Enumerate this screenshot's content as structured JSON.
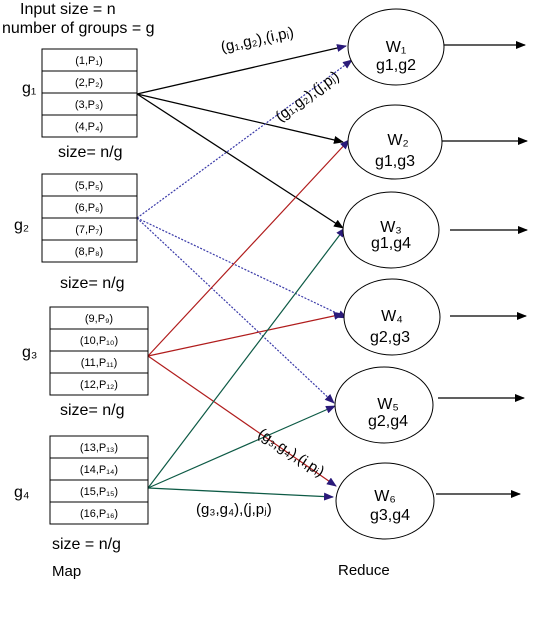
{
  "header": {
    "line1": "Input size = n",
    "line2": "number of groups = g"
  },
  "groups": [
    {
      "label": "g₁",
      "cells": [
        "(1,P₁)",
        "(2,P₂)",
        "(3,P₃)",
        "(4,P₄)"
      ],
      "size_label": "size= n/g"
    },
    {
      "label": "g₂",
      "cells": [
        "(5,P₅)",
        "(6,P₆)",
        "(7,P₇)",
        "(8,P₈)"
      ],
      "size_label": "size= n/g"
    },
    {
      "label": "g₃",
      "cells": [
        "(9,P₉)",
        "(10,P₁₀)",
        "(11,P₁₁)",
        "(12,P₁₂)"
      ],
      "size_label": "size= n/g"
    },
    {
      "label": "g₄",
      "cells": [
        "(13,P₁₃)",
        "(14,P₁₄)",
        "(15,P₁₅)",
        "(16,P₁₆)"
      ],
      "size_label": "size = n/g"
    }
  ],
  "workers": [
    {
      "name": "W₁",
      "pair": "g1,g2"
    },
    {
      "name": "W₂",
      "pair": "g1,g3"
    },
    {
      "name": "W₃",
      "pair": "g1,g4"
    },
    {
      "name": "W₄",
      "pair": "g2,g3"
    },
    {
      "name": "W₅",
      "pair": "g2,g4"
    },
    {
      "name": "W₆",
      "pair": "g3,g4"
    }
  ],
  "edge_labels": {
    "g1_w1": "(g₁,g₂),(i,pᵢ)",
    "g2_w1": "(g₁,g₂),(j,pⱼ)",
    "g3_w6": "(g₃,g₄),(i,pᵢ)",
    "g4_w6": "(g₃,g₄),(j,pⱼ)"
  },
  "footer": {
    "map_label": "Map",
    "reduce_label": "Reduce"
  },
  "colors": {
    "g1_edges": "#000000",
    "g2_edges": "#3a3aa8",
    "g3_edges": "#b01c1c",
    "g4_edges": "#0d5a45",
    "arrowhead_in": "#2a1a7a"
  }
}
